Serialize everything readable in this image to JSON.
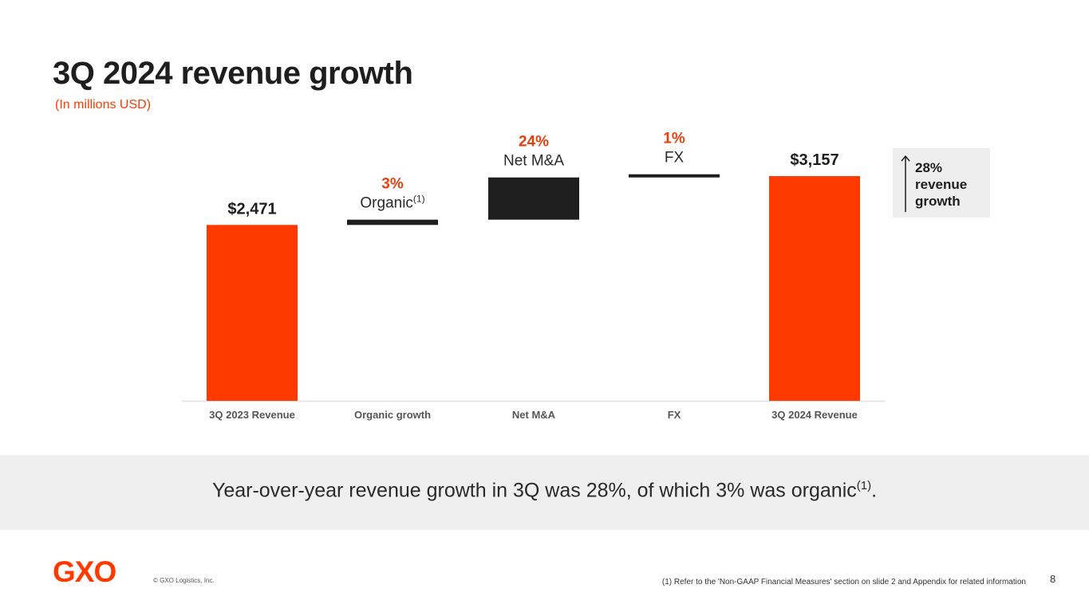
{
  "title": "3Q 2024 revenue growth",
  "subtitle": "(In millions USD)",
  "chart_data": {
    "type": "bar",
    "subtype": "waterfall",
    "categories": [
      "3Q 2023 Revenue",
      "Organic growth",
      "Net M&A",
      "FX",
      "3Q 2024 Revenue"
    ],
    "values": [
      2471,
      74,
      593,
      19,
      3157
    ],
    "value_kind": [
      "total",
      "delta",
      "delta",
      "delta",
      "total"
    ],
    "data_labels": [
      "$2,471",
      "3%",
      "24%",
      "1%",
      "$3,157"
    ],
    "step_labels": [
      "",
      "Organic",
      "Net M&A",
      "FX",
      ""
    ],
    "step_label_sup": [
      "",
      "(1)",
      "",
      "",
      ""
    ],
    "ylim": [
      0,
      3300
    ],
    "grid": false,
    "legend": "none",
    "colors": {
      "total": "#ff3a00",
      "delta": "#1e1e1e",
      "pct_label": "#e8400c",
      "axis": "#e0e0e0",
      "tick": "#555555"
    }
  },
  "badge": {
    "text": "28% revenue growth"
  },
  "summary": {
    "text": "Year-over-year revenue growth in 3Q was 28%, of which 3% was organic",
    "sup": "(1)",
    "end": "."
  },
  "footer": {
    "logo": "GXO",
    "copyright": "© GXO Logistics, Inc.",
    "footnote": "(1) Refer to the 'Non-GAAP Financial Measures' section on slide 2 and Appendix for related information",
    "page_number": "8"
  }
}
